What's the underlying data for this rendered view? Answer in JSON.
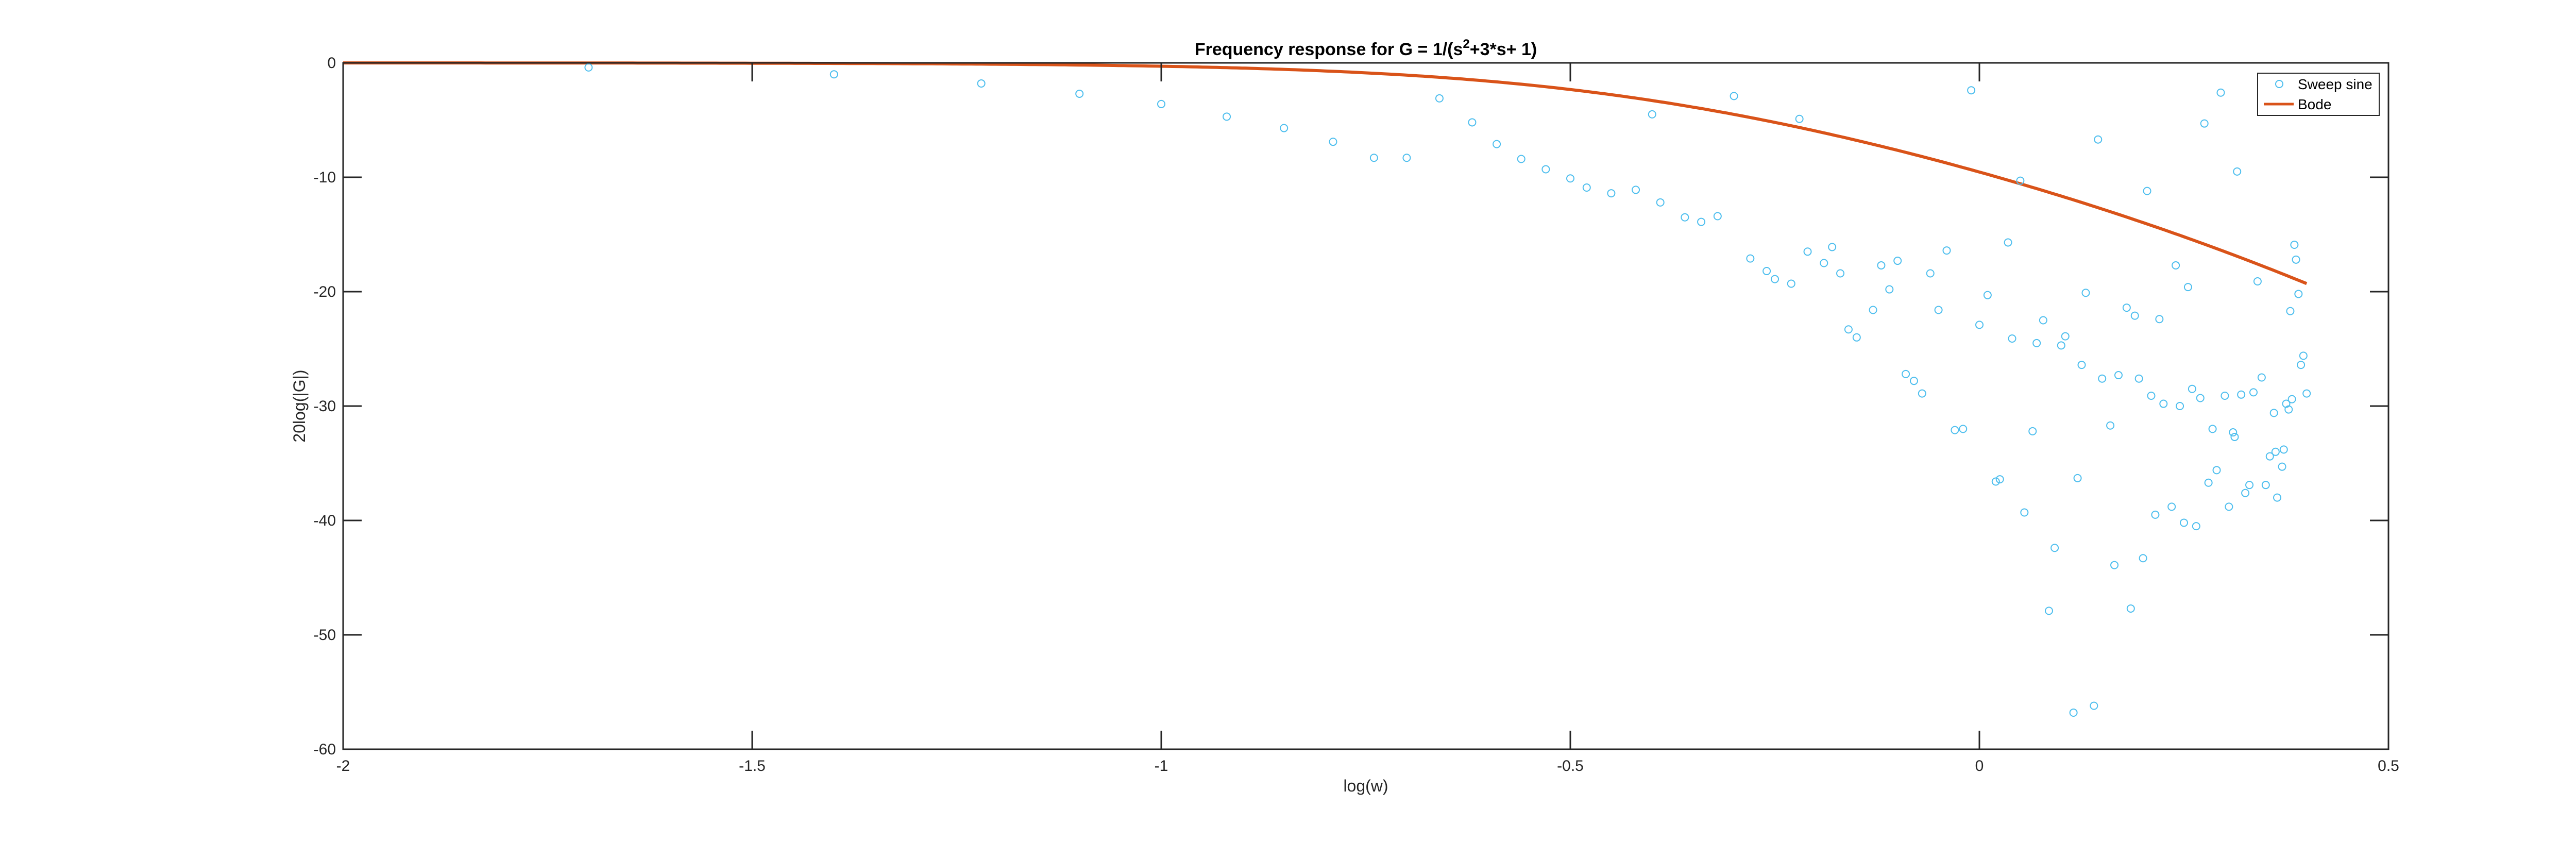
{
  "chart_data": {
    "type": "scatter",
    "title_parts": [
      "Frequency response for G = 1/(s",
      "2",
      "+3*s+ 1)"
    ],
    "xlabel": "log(w)",
    "ylabel": "20log(|G|)",
    "xlim": [
      -2,
      0.5
    ],
    "ylim": [
      -60,
      0
    ],
    "xticks": [
      -2,
      -1.5,
      -1,
      -0.5,
      0,
      0.5
    ],
    "yticks": [
      0,
      -10,
      -20,
      -30,
      -40,
      -50,
      -60
    ],
    "xtick_labels": [
      "-2",
      "-1.5",
      "-1",
      "-0.5",
      "0",
      "0.5"
    ],
    "ytick_labels": [
      "0",
      "-10",
      "-20",
      "-30",
      "-40",
      "-50",
      "-60"
    ],
    "legend_position": "top-right",
    "grid": false,
    "series": [
      {
        "name": "Sweep sine",
        "kind": "scatter",
        "marker": "circle",
        "color": "#4DBEEE",
        "points": [
          [
            -1.7,
            -0.4
          ],
          [
            -1.4,
            -1.0
          ],
          [
            -1.22,
            -1.8
          ],
          [
            -1.1,
            -2.7
          ],
          [
            -1.0,
            -3.6
          ],
          [
            -0.92,
            -4.7
          ],
          [
            -0.85,
            -5.7
          ],
          [
            -0.79,
            -6.9
          ],
          [
            -0.74,
            -8.3
          ],
          [
            -0.7,
            -8.3
          ],
          [
            -0.66,
            -3.1
          ],
          [
            -0.62,
            -5.2
          ],
          [
            -0.59,
            -7.1
          ],
          [
            -0.56,
            -8.4
          ],
          [
            -0.53,
            -9.3
          ],
          [
            -0.5,
            -10.1
          ],
          [
            -0.48,
            -10.9
          ],
          [
            -0.45,
            -11.4
          ],
          [
            -0.42,
            -11.1
          ],
          [
            -0.4,
            -4.5
          ],
          [
            -0.39,
            -12.2
          ],
          [
            -0.36,
            -13.5
          ],
          [
            -0.34,
            -13.9
          ],
          [
            -0.32,
            -13.4
          ],
          [
            -0.3,
            -2.9
          ],
          [
            -0.28,
            -17.1
          ],
          [
            -0.26,
            -18.2
          ],
          [
            -0.25,
            -18.9
          ],
          [
            -0.23,
            -19.3
          ],
          [
            -0.22,
            -4.9
          ],
          [
            -0.21,
            -16.5
          ],
          [
            -0.19,
            -17.5
          ],
          [
            -0.18,
            -16.1
          ],
          [
            -0.17,
            -18.4
          ],
          [
            -0.16,
            -23.3
          ],
          [
            -0.15,
            -24.0
          ],
          [
            -0.13,
            -21.6
          ],
          [
            -0.12,
            -17.7
          ],
          [
            -0.11,
            -19.8
          ],
          [
            -0.1,
            -17.3
          ],
          [
            -0.09,
            -27.2
          ],
          [
            -0.08,
            -27.8
          ],
          [
            -0.07,
            -28.9
          ],
          [
            -0.06,
            -18.4
          ],
          [
            -0.05,
            -21.6
          ],
          [
            -0.04,
            -16.4
          ],
          [
            -0.03,
            -32.1
          ],
          [
            -0.02,
            -32.0
          ],
          [
            -0.01,
            -2.4
          ],
          [
            0.0,
            -22.9
          ],
          [
            0.01,
            -20.3
          ],
          [
            0.02,
            -36.6
          ],
          [
            0.025,
            -36.4
          ],
          [
            0.035,
            -15.7
          ],
          [
            0.04,
            -24.1
          ],
          [
            0.05,
            -10.3
          ],
          [
            0.055,
            -39.3
          ],
          [
            0.065,
            -32.2
          ],
          [
            0.07,
            -24.5
          ],
          [
            0.078,
            -22.5
          ],
          [
            0.085,
            -47.9
          ],
          [
            0.092,
            -42.4
          ],
          [
            0.1,
            -24.7
          ],
          [
            0.105,
            -23.9
          ],
          [
            0.115,
            -56.8
          ],
          [
            0.12,
            -36.3
          ],
          [
            0.125,
            -26.4
          ],
          [
            0.13,
            -20.1
          ],
          [
            0.14,
            -56.2
          ],
          [
            0.145,
            -6.7
          ],
          [
            0.15,
            -27.6
          ],
          [
            0.16,
            -31.7
          ],
          [
            0.165,
            -43.9
          ],
          [
            0.17,
            -27.3
          ],
          [
            0.18,
            -21.4
          ],
          [
            0.185,
            -47.7
          ],
          [
            0.19,
            -22.1
          ],
          [
            0.195,
            -27.6
          ],
          [
            0.2,
            -43.3
          ],
          [
            0.205,
            -11.2
          ],
          [
            0.21,
            -29.1
          ],
          [
            0.215,
            -39.5
          ],
          [
            0.22,
            -22.4
          ],
          [
            0.225,
            -29.8
          ],
          [
            0.235,
            -38.8
          ],
          [
            0.24,
            -17.7
          ],
          [
            0.245,
            -30.0
          ],
          [
            0.25,
            -40.2
          ],
          [
            0.255,
            -19.6
          ],
          [
            0.26,
            -28.5
          ],
          [
            0.265,
            -40.5
          ],
          [
            0.27,
            -29.3
          ],
          [
            0.275,
            -5.3
          ],
          [
            0.28,
            -36.7
          ],
          [
            0.285,
            -32.0
          ],
          [
            0.29,
            -35.6
          ],
          [
            0.295,
            -2.6
          ],
          [
            0.3,
            -29.1
          ],
          [
            0.305,
            -38.8
          ],
          [
            0.31,
            -32.3
          ],
          [
            0.312,
            -32.7
          ],
          [
            0.315,
            -9.5
          ],
          [
            0.32,
            -29.0
          ],
          [
            0.325,
            -37.6
          ],
          [
            0.33,
            -36.9
          ],
          [
            0.335,
            -28.8
          ],
          [
            0.34,
            -19.1
          ],
          [
            0.345,
            -27.5
          ],
          [
            0.35,
            -36.9
          ],
          [
            0.355,
            -34.4
          ],
          [
            0.36,
            -30.6
          ],
          [
            0.362,
            -34.0
          ],
          [
            0.364,
            -38.0
          ],
          [
            0.37,
            -35.3
          ],
          [
            0.372,
            -33.8
          ],
          [
            0.375,
            -29.8
          ],
          [
            0.378,
            -30.3
          ],
          [
            0.38,
            -21.7
          ],
          [
            0.382,
            -29.4
          ],
          [
            0.385,
            -15.9
          ],
          [
            0.387,
            -17.2
          ],
          [
            0.39,
            -20.2
          ],
          [
            0.393,
            -26.4
          ],
          [
            0.396,
            -25.6
          ],
          [
            0.4,
            -28.9
          ]
        ]
      },
      {
        "name": "Bode",
        "kind": "line",
        "color": "#D95319",
        "transfer_function": "1/(s^2+3*s+1)",
        "x_range": [
          -2,
          0.4
        ]
      }
    ]
  }
}
